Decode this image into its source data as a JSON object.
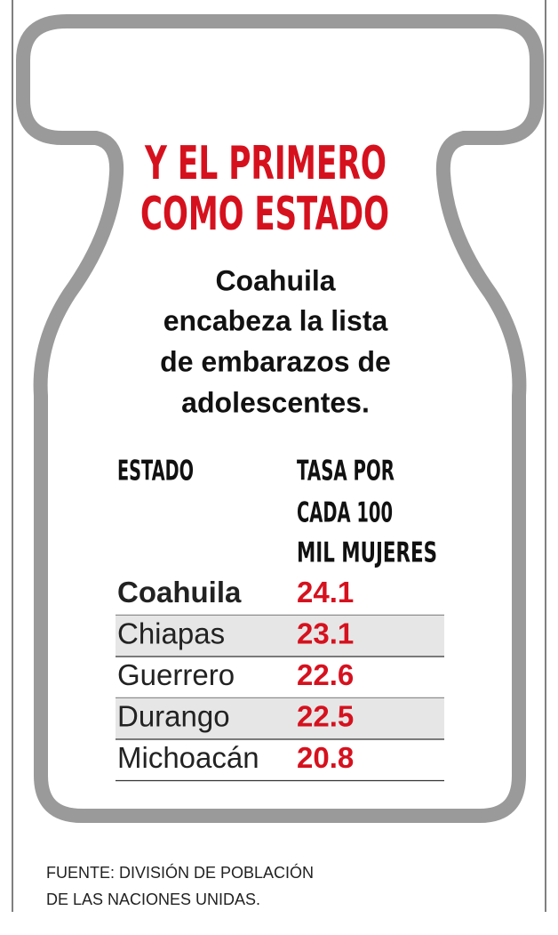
{
  "title": [
    "Y EL PRIMERO",
    "COMO ESTADO"
  ],
  "subtitle": [
    "Coahuila",
    "encabeza la lista",
    "de embarazos de",
    "adolescentes."
  ],
  "table": {
    "header": [
      [
        "ESTADO"
      ],
      [
        "TASA POR",
        "CADA 100",
        "MIL MUJERES"
      ]
    ],
    "rows": [
      [
        "Coahuila",
        24.1
      ],
      [
        "Chiapas",
        23.1
      ],
      [
        "Guerrero",
        22.6
      ],
      [
        "Durango",
        22.5
      ],
      [
        "Michoacán",
        20.8
      ]
    ]
  },
  "source": [
    "FUENTE: DIVISIÓN DE POBLACIÓN",
    "DE LAS NACIONES UNIDAS."
  ]
}
